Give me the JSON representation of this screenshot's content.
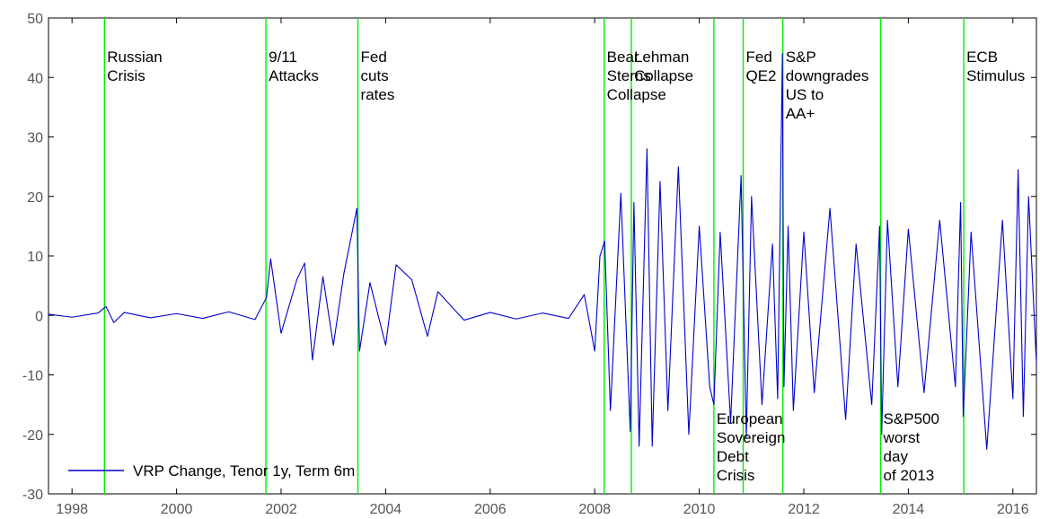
{
  "chart_data": {
    "type": "line",
    "title": "",
    "xlabel": "",
    "ylabel": "",
    "xlim": [
      1997.55,
      2016.45
    ],
    "ylim": [
      -30,
      50
    ],
    "xticks": [
      1998,
      2000,
      2002,
      2004,
      2006,
      2008,
      2010,
      2012,
      2014,
      2016
    ],
    "yticks": [
      -30,
      -20,
      -10,
      0,
      10,
      20,
      30,
      40,
      50
    ],
    "grid": false,
    "legend_position": "bottom-left",
    "series": [
      {
        "name": "VRP Change, Tenor 1y, Term 6m",
        "color": "#0000cc",
        "x": [
          1997.55,
          1998.0,
          1998.5,
          1998.65,
          1998.8,
          1999.0,
          1999.5,
          2000.0,
          2000.5,
          2001.0,
          2001.5,
          2001.72,
          2001.8,
          2002.0,
          2002.3,
          2002.45,
          2002.6,
          2002.8,
          2003.0,
          2003.2,
          2003.45,
          2003.5,
          2003.7,
          2004.0,
          2004.2,
          2004.5,
          2004.8,
          2005.0,
          2005.5,
          2006.0,
          2006.5,
          2007.0,
          2007.5,
          2007.8,
          2008.0,
          2008.1,
          2008.19,
          2008.3,
          2008.5,
          2008.68,
          2008.75,
          2008.85,
          2009.0,
          2009.1,
          2009.25,
          2009.4,
          2009.6,
          2009.8,
          2010.0,
          2010.2,
          2010.28,
          2010.4,
          2010.6,
          2010.8,
          2010.9,
          2011.0,
          2011.2,
          2011.4,
          2011.5,
          2011.59,
          2011.62,
          2011.7,
          2011.8,
          2012.0,
          2012.2,
          2012.5,
          2012.8,
          2013.0,
          2013.3,
          2013.45,
          2013.49,
          2013.6,
          2013.8,
          2014.0,
          2014.3,
          2014.6,
          2014.9,
          2015.0,
          2015.05,
          2015.2,
          2015.5,
          2015.8,
          2016.0,
          2016.1,
          2016.2,
          2016.3,
          2016.45
        ],
        "values": [
          0.2,
          -0.3,
          0.4,
          1.5,
          -1.2,
          0.5,
          -0.4,
          0.3,
          -0.5,
          0.6,
          -0.7,
          3.0,
          9.5,
          -3.0,
          6.0,
          8.8,
          -7.5,
          6.5,
          -5.0,
          7.0,
          18.0,
          -6.0,
          5.5,
          -5.0,
          8.5,
          6.0,
          -3.5,
          4.0,
          -0.8,
          0.5,
          -0.6,
          0.4,
          -0.5,
          3.5,
          -6.0,
          10.0,
          12.5,
          -16.0,
          20.5,
          -19.5,
          19.0,
          -22.0,
          28.0,
          -22.0,
          22.5,
          -16.0,
          25.0,
          -20.0,
          15.0,
          -12.0,
          -15.0,
          14.0,
          -18.0,
          23.5,
          -20.5,
          20.0,
          -15.0,
          12.0,
          -14.0,
          44.0,
          -12.0,
          15.0,
          -16.0,
          14.0,
          -13.0,
          18.0,
          -17.5,
          12.0,
          -15.0,
          15.0,
          -20.0,
          16.0,
          -12.0,
          14.5,
          -13.0,
          16.0,
          -12.0,
          19.0,
          -17.0,
          14.0,
          -22.5,
          16.0,
          -14.0,
          24.5,
          -17.0,
          20.0,
          -8.0
        ]
      }
    ],
    "events": [
      {
        "x": 1998.62,
        "label": [
          "Russian",
          "Crisis"
        ],
        "pos": "top"
      },
      {
        "x": 2001.71,
        "label": [
          "9/11",
          "Attacks"
        ],
        "pos": "top"
      },
      {
        "x": 2003.47,
        "label": [
          "Fed",
          "cuts",
          "rates"
        ],
        "pos": "top"
      },
      {
        "x": 2008.18,
        "label": [
          "Bear",
          "Sterns",
          "Collapse"
        ],
        "pos": "top"
      },
      {
        "x": 2008.7,
        "label": [
          "Lehman",
          "Collapse"
        ],
        "pos": "top"
      },
      {
        "x": 2010.28,
        "label": [
          "European",
          "Sovereign",
          "Debt",
          "Crisis"
        ],
        "pos": "bottom"
      },
      {
        "x": 2010.84,
        "label": [
          "Fed",
          "QE2"
        ],
        "pos": "top"
      },
      {
        "x": 2011.6,
        "label": [
          "S&P",
          "downgrades",
          "US to",
          "AA+"
        ],
        "pos": "top"
      },
      {
        "x": 2013.47,
        "label": [
          "S&P500",
          "worst",
          "day",
          "of 2013"
        ],
        "pos": "bottom"
      },
      {
        "x": 2015.06,
        "label": [
          "ECB",
          "Stimulus"
        ],
        "pos": "top"
      }
    ],
    "event_line_color": "#00ee00"
  }
}
